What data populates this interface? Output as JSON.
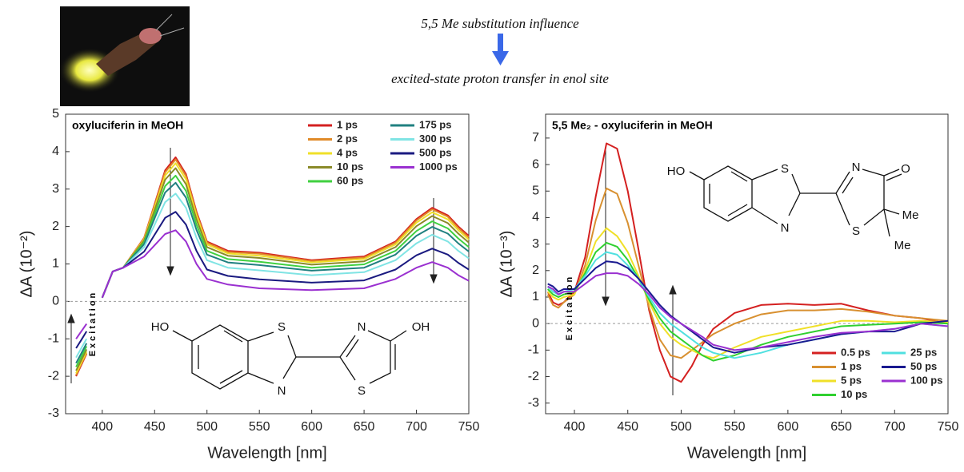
{
  "header": {
    "title": "5,5 Me substitution influence",
    "subtitle": "excited-state proton transfer in enol site"
  },
  "chart_data": [
    {
      "type": "line",
      "title": "oxyluciferin  in MeOH",
      "xlabel": "Wavelength [nm]",
      "ylabel": "ΔA (10⁻²)",
      "annotation": "Excitation",
      "structure_labels": [
        "HO",
        "S",
        "N",
        "N",
        "S",
        "OH"
      ],
      "xlim": [
        365,
        750
      ],
      "ylim": [
        -3,
        5
      ],
      "xticks": [
        400,
        450,
        500,
        550,
        600,
        650,
        700,
        750
      ],
      "yticks": [
        -3,
        -2,
        -1,
        0,
        1,
        2,
        3,
        4,
        5
      ],
      "zero_line": true,
      "legend_columns": 2,
      "x": [
        375,
        380,
        385,
        390,
        400,
        410,
        420,
        440,
        450,
        460,
        470,
        480,
        490,
        500,
        520,
        550,
        600,
        650,
        680,
        700,
        715,
        730,
        740,
        750
      ],
      "series": [
        {
          "name": "1 ps",
          "color": "#d42020",
          "values": [
            -2.0,
            -1.7,
            -1.4,
            null,
            0.1,
            0.8,
            0.9,
            1.7,
            2.6,
            3.5,
            3.85,
            3.4,
            2.4,
            1.6,
            1.35,
            1.3,
            1.1,
            1.2,
            1.6,
            2.2,
            2.5,
            2.3,
            2.0,
            1.75
          ]
        },
        {
          "name": "2 ps",
          "color": "#e08a28",
          "values": [
            -1.97,
            -1.67,
            -1.38,
            null,
            0.1,
            0.8,
            0.9,
            1.69,
            2.57,
            3.45,
            3.79,
            3.35,
            2.36,
            1.57,
            1.32,
            1.27,
            1.08,
            1.17,
            1.57,
            2.16,
            2.46,
            2.26,
            1.96,
            1.71
          ]
        },
        {
          "name": "4 ps",
          "color": "#f0e028",
          "values": [
            -1.92,
            -1.63,
            -1.34,
            null,
            0.1,
            0.8,
            0.9,
            1.66,
            2.51,
            3.36,
            3.69,
            3.26,
            2.29,
            1.52,
            1.28,
            1.22,
            1.04,
            1.13,
            1.52,
            2.1,
            2.38,
            2.19,
            1.9,
            1.65
          ]
        },
        {
          "name": "10 ps",
          "color": "#8a8a28",
          "values": [
            -1.85,
            -1.57,
            -1.28,
            null,
            0.1,
            0.8,
            0.9,
            1.63,
            2.44,
            3.25,
            3.56,
            3.13,
            2.19,
            1.45,
            1.22,
            1.16,
            0.98,
            1.07,
            1.45,
            2.01,
            2.28,
            2.09,
            1.81,
            1.57
          ]
        },
        {
          "name": "60 ps",
          "color": "#40d040",
          "values": [
            -1.75,
            -1.48,
            -1.2,
            null,
            0.1,
            0.8,
            0.9,
            1.58,
            2.33,
            3.08,
            3.36,
            2.95,
            2.05,
            1.35,
            1.13,
            1.06,
            0.9,
            0.99,
            1.35,
            1.88,
            2.14,
            1.95,
            1.68,
            1.45
          ]
        },
        {
          "name": "175 ps",
          "color": "#208080",
          "values": [
            -1.65,
            -1.39,
            -1.12,
            null,
            0.1,
            0.8,
            0.9,
            1.53,
            2.22,
            2.91,
            3.17,
            2.77,
            1.91,
            1.25,
            1.04,
            0.97,
            0.82,
            0.9,
            1.25,
            1.75,
            1.99,
            1.81,
            1.55,
            1.33
          ]
        },
        {
          "name": "300 ps",
          "color": "#80e4e4",
          "values": [
            -1.5,
            -1.25,
            -1.0,
            null,
            0.1,
            0.8,
            0.9,
            1.45,
            2.05,
            2.65,
            2.88,
            2.5,
            1.7,
            1.1,
            0.9,
            0.83,
            0.7,
            0.78,
            1.1,
            1.55,
            1.78,
            1.6,
            1.35,
            1.15
          ]
        },
        {
          "name": "500 ps",
          "color": "#1a1a80",
          "values": [
            -1.25,
            -1.03,
            -0.8,
            null,
            0.1,
            0.8,
            0.9,
            1.33,
            1.78,
            2.23,
            2.39,
            2.05,
            1.35,
            0.85,
            0.68,
            0.59,
            0.5,
            0.56,
            0.85,
            1.23,
            1.41,
            1.25,
            1.03,
            0.85
          ]
        },
        {
          "name": "1000 ps",
          "color": "#9a30d0",
          "values": [
            -1.0,
            -0.8,
            -0.6,
            null,
            0.1,
            0.8,
            0.9,
            1.2,
            1.5,
            1.8,
            1.9,
            1.6,
            1.0,
            0.6,
            0.45,
            0.35,
            0.3,
            0.35,
            0.6,
            0.9,
            1.05,
            0.9,
            0.7,
            0.55
          ]
        }
      ]
    },
    {
      "type": "line",
      "title": "5,5 Me₂ - oxyluciferin  in MeOH",
      "xlabel": "Wavelength [nm]",
      "ylabel": "ΔA (10⁻³)",
      "annotation": "Excitation",
      "structure_labels": [
        "HO",
        "S",
        "N",
        "N",
        "O",
        "S",
        "Me",
        "Me"
      ],
      "xlim": [
        373,
        750
      ],
      "ylim": [
        -3.4,
        7.9
      ],
      "xticks": [
        400,
        450,
        500,
        550,
        600,
        650,
        700,
        750
      ],
      "yticks": [
        -3,
        -2,
        -1,
        0,
        1,
        2,
        3,
        4,
        5,
        6,
        7
      ],
      "zero_line": true,
      "legend_columns": 2,
      "x": [
        375,
        380,
        385,
        390,
        400,
        410,
        420,
        430,
        440,
        450,
        460,
        470,
        480,
        490,
        500,
        510,
        520,
        530,
        550,
        575,
        600,
        625,
        650,
        675,
        700,
        725,
        750
      ],
      "series": [
        {
          "name": "0.5 ps",
          "color": "#d42020",
          "values": [
            1.2,
            0.8,
            0.7,
            0.8,
            1.2,
            2.5,
            4.8,
            6.8,
            6.6,
            5.0,
            2.8,
            0.5,
            -1.0,
            -2.0,
            -2.2,
            -1.6,
            -0.8,
            -0.2,
            0.4,
            0.7,
            0.75,
            0.7,
            0.75,
            0.5,
            0.3,
            0.2,
            0.0
          ]
        },
        {
          "name": "1 ps",
          "color": "#d89030",
          "values": [
            1.1,
            0.7,
            0.6,
            0.8,
            1.1,
            2.2,
            3.9,
            5.1,
            4.9,
            3.8,
            2.2,
            0.6,
            -0.6,
            -1.2,
            -1.3,
            -1.0,
            -0.7,
            -0.4,
            0.0,
            0.35,
            0.5,
            0.5,
            0.55,
            0.45,
            0.3,
            0.2,
            0.1
          ]
        },
        {
          "name": "5 ps",
          "color": "#f0e028",
          "values": [
            1.2,
            1.0,
            0.9,
            1.0,
            1.1,
            2.0,
            3.1,
            3.6,
            3.3,
            2.7,
            1.8,
            0.8,
            0.0,
            -0.5,
            -0.8,
            -1.0,
            -1.2,
            -1.3,
            -0.9,
            -0.5,
            -0.3,
            -0.1,
            0.1,
            0.1,
            0.05,
            0.1,
            0.05
          ]
        },
        {
          "name": "10 ps",
          "color": "#30d030",
          "values": [
            1.3,
            1.1,
            1.0,
            1.1,
            1.2,
            1.9,
            2.7,
            3.05,
            2.9,
            2.4,
            1.7,
            0.9,
            0.2,
            -0.3,
            -0.6,
            -0.9,
            -1.2,
            -1.4,
            -1.2,
            -0.8,
            -0.5,
            -0.3,
            -0.1,
            -0.05,
            0.0,
            0.05,
            0.0
          ]
        },
        {
          "name": "25 ps",
          "color": "#50e0e0",
          "values": [
            1.4,
            1.2,
            1.1,
            1.2,
            1.3,
            1.8,
            2.4,
            2.7,
            2.6,
            2.2,
            1.7,
            1.0,
            0.4,
            0.0,
            -0.3,
            -0.6,
            -0.9,
            -1.1,
            -1.3,
            -1.1,
            -0.8,
            -0.6,
            -0.4,
            -0.3,
            -0.2,
            0.0,
            -0.1
          ]
        },
        {
          "name": "50 ps",
          "color": "#1a1a90",
          "values": [
            1.5,
            1.4,
            1.2,
            1.3,
            1.3,
            1.7,
            2.1,
            2.35,
            2.3,
            2.1,
            1.7,
            1.2,
            0.7,
            0.3,
            0.0,
            -0.3,
            -0.6,
            -0.9,
            -1.1,
            -0.9,
            -0.8,
            -0.6,
            -0.4,
            -0.3,
            -0.3,
            0.0,
            0.1
          ]
        },
        {
          "name": "100 ps",
          "color": "#9a30d0",
          "values": [
            1.4,
            1.3,
            1.1,
            1.2,
            1.2,
            1.5,
            1.8,
            1.9,
            1.9,
            1.8,
            1.5,
            1.1,
            0.6,
            0.25,
            0.0,
            -0.25,
            -0.5,
            -0.8,
            -1.0,
            -0.9,
            -0.7,
            -0.5,
            -0.35,
            -0.3,
            -0.2,
            0.0,
            -0.1
          ]
        }
      ]
    }
  ]
}
